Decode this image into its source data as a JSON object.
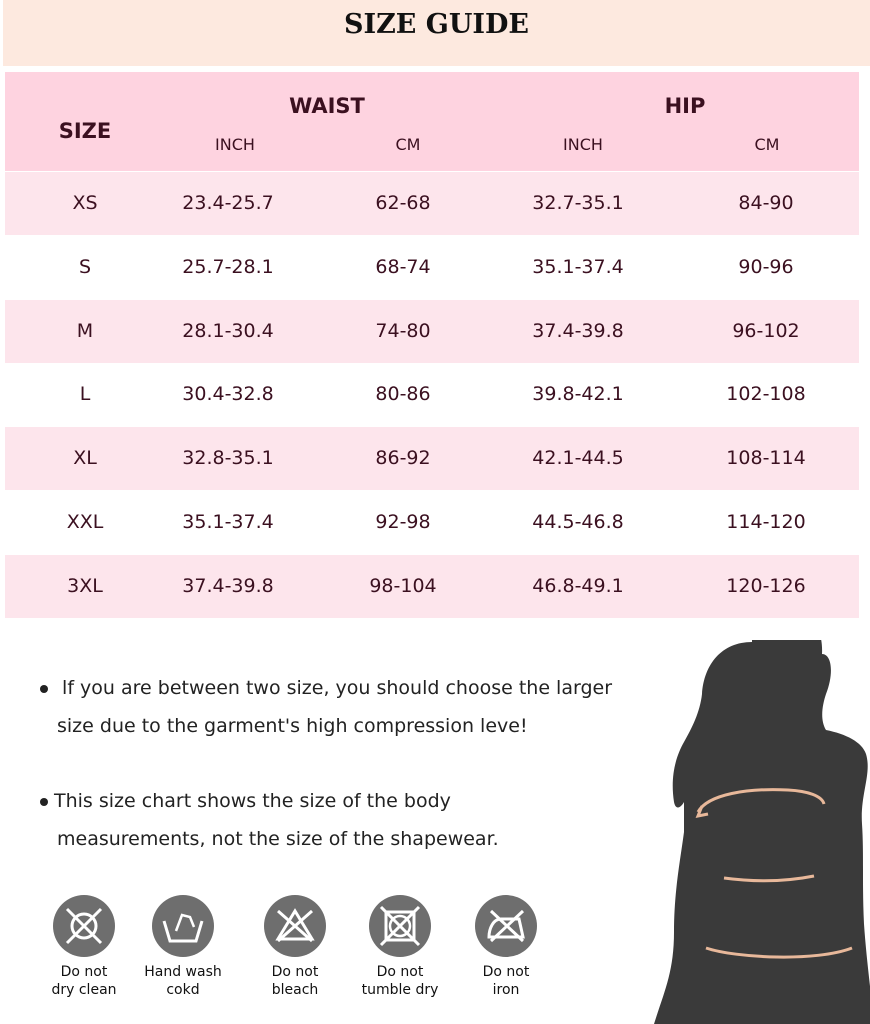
{
  "title": "SIZE GUIDE",
  "table": {
    "size_header": "SIZE",
    "groups": [
      "WAIST",
      "HIP"
    ],
    "units": [
      "INCH",
      "CM",
      "INCH",
      "CM"
    ],
    "rows": [
      [
        "XS",
        "23.4-25.7",
        "62-68",
        "32.7-35.1",
        "84-90"
      ],
      [
        "S",
        "25.7-28.1",
        "68-74",
        "35.1-37.4",
        "90-96"
      ],
      [
        "M",
        "28.1-30.4",
        "74-80",
        "37.4-39.8",
        "96-102"
      ],
      [
        "L",
        "30.4-32.8",
        "80-86",
        "39.8-42.1",
        "102-108"
      ],
      [
        "XL",
        "32.8-35.1",
        "86-92",
        "42.1-44.5",
        "108-114"
      ],
      [
        "XXL",
        "35.1-37.4",
        "92-98",
        "44.5-46.8",
        "114-120"
      ],
      [
        "3XL",
        "37.4-39.8",
        "98-104",
        "46.8-49.1",
        "120-126"
      ]
    ]
  },
  "notes": [
    {
      "line1": " lf you are between two size, you should choose the larger",
      "line2": "size due to the garment's high compression leve!"
    },
    {
      "line1": "This size chart shows the size of the body",
      "line2": "measurements, not the size of the shapewear."
    }
  ],
  "care": [
    {
      "icon": "no-dry-clean-icon",
      "line1": "Do not",
      "line2": "dry clean"
    },
    {
      "icon": "hand-wash-icon",
      "line1": "Hand wash",
      "line2": "cokd"
    },
    {
      "icon": "no-bleach-icon",
      "line1": "Do not",
      "line2": "bleach"
    },
    {
      "icon": "no-tumble-dry-icon",
      "line1": "Do not",
      "line2": "tumble dry"
    },
    {
      "icon": "no-iron-icon",
      "line1": "Do not",
      "line2": "iron"
    }
  ],
  "colors": {
    "banner": "#fde9df",
    "header": "#fed3e0",
    "row_alt": "#fde5ec",
    "text": "#3b1020",
    "icon_bg": "#6e6e6e",
    "silhouette": "#3a3a3a",
    "measure_line": "#e8b89a"
  }
}
